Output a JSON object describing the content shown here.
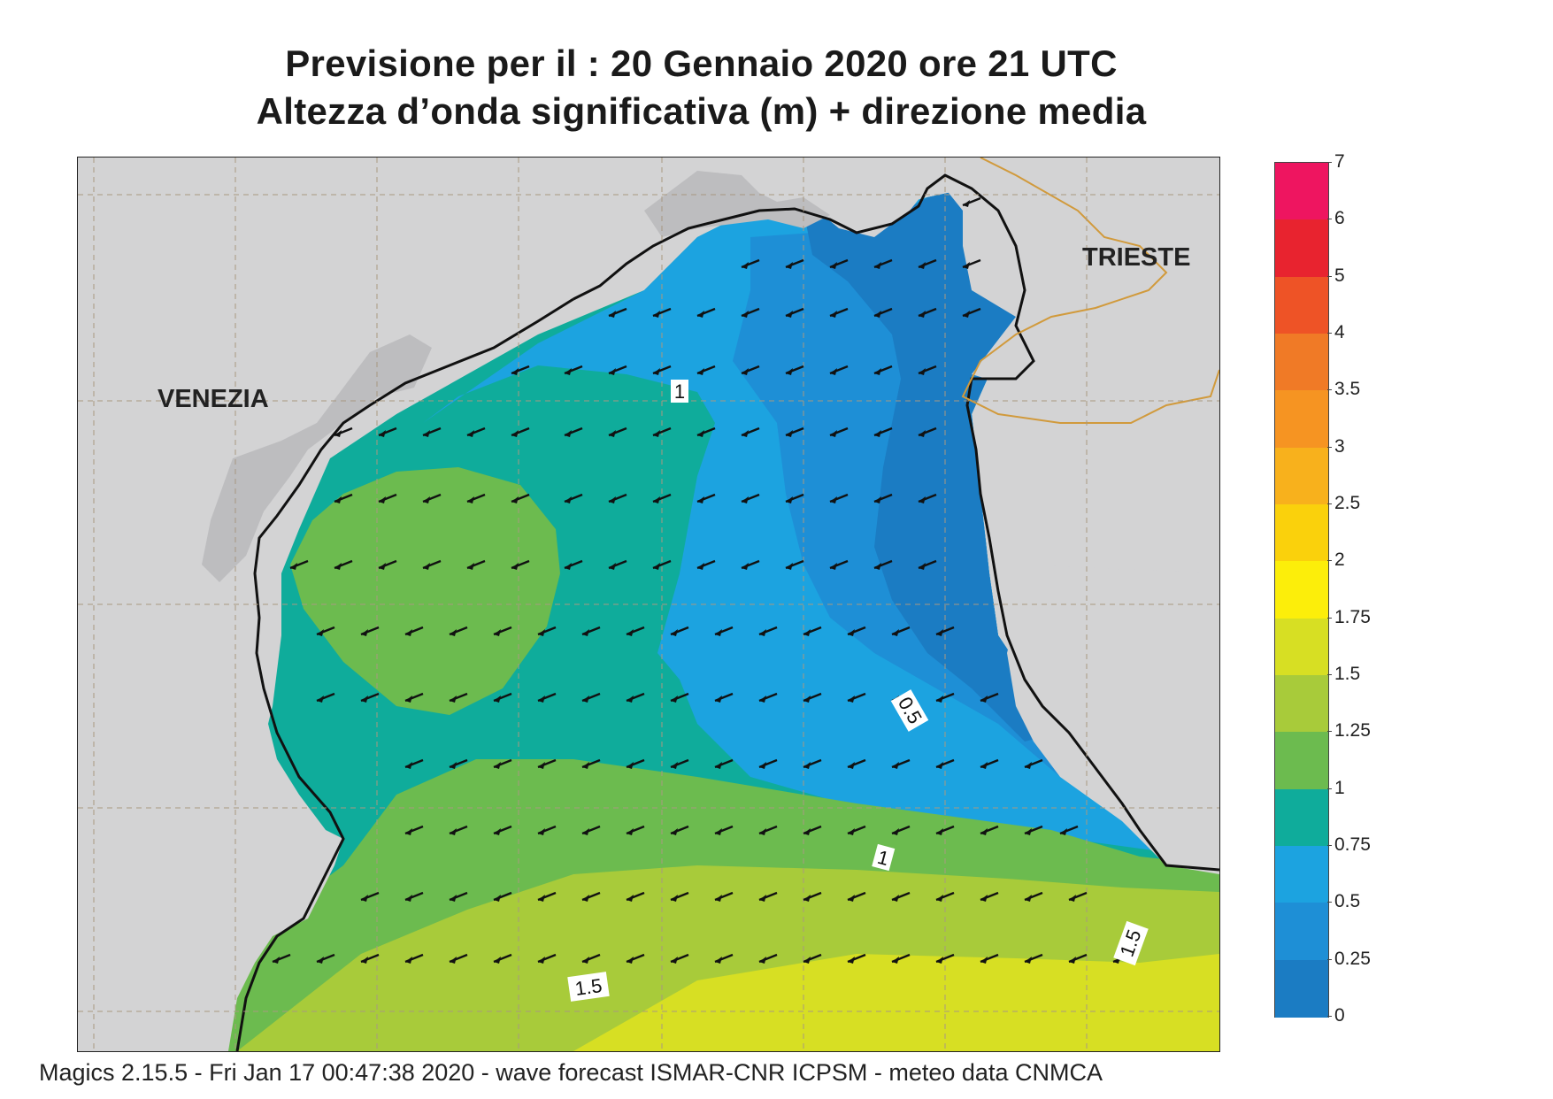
{
  "title": {
    "line1": "Previsione per il  :  20  Gennaio  2020   ore 21 UTC",
    "line2": "Altezza d’onda significativa (m) + direzione media"
  },
  "footer": "Magics 2.15.5 - Fri Jan 17 00:47:38 2020 - wave forecast  ISMAR-CNR  ICPSM - meteo data   CNMCA",
  "map": {
    "cities": [
      "VENEZIA",
      "TRIESTE"
    ],
    "contour_labels": [
      "1",
      "0.5",
      "1",
      "1.5",
      "1.5"
    ],
    "wave_direction": "arrows pointing west-southwest across the northern Adriatic"
  },
  "legend": {
    "levels": [
      {
        "label": "7",
        "color": "#ee1560"
      },
      {
        "label": "6",
        "color": "#e8232f"
      },
      {
        "label": "5",
        "color": "#ee5326"
      },
      {
        "label": "4",
        "color": "#f07a26"
      },
      {
        "label": "3.5",
        "color": "#f69422"
      },
      {
        "label": "3",
        "color": "#f8b11c"
      },
      {
        "label": "2.5",
        "color": "#fad10c"
      },
      {
        "label": "2",
        "color": "#fcee0a"
      },
      {
        "label": "1.75",
        "color": "#d7df23"
      },
      {
        "label": "1.5",
        "color": "#a8cb3a"
      },
      {
        "label": "1.25",
        "color": "#6cbb4f"
      },
      {
        "label": "1",
        "color": "#0fac9b"
      },
      {
        "label": "0.75",
        "color": "#1ca3e0"
      },
      {
        "label": "0.5",
        "color": "#1e8fd6"
      },
      {
        "label": "0.25",
        "color": "#1b7cc3"
      },
      {
        "label": "0",
        "color": "#1864b0"
      }
    ]
  }
}
